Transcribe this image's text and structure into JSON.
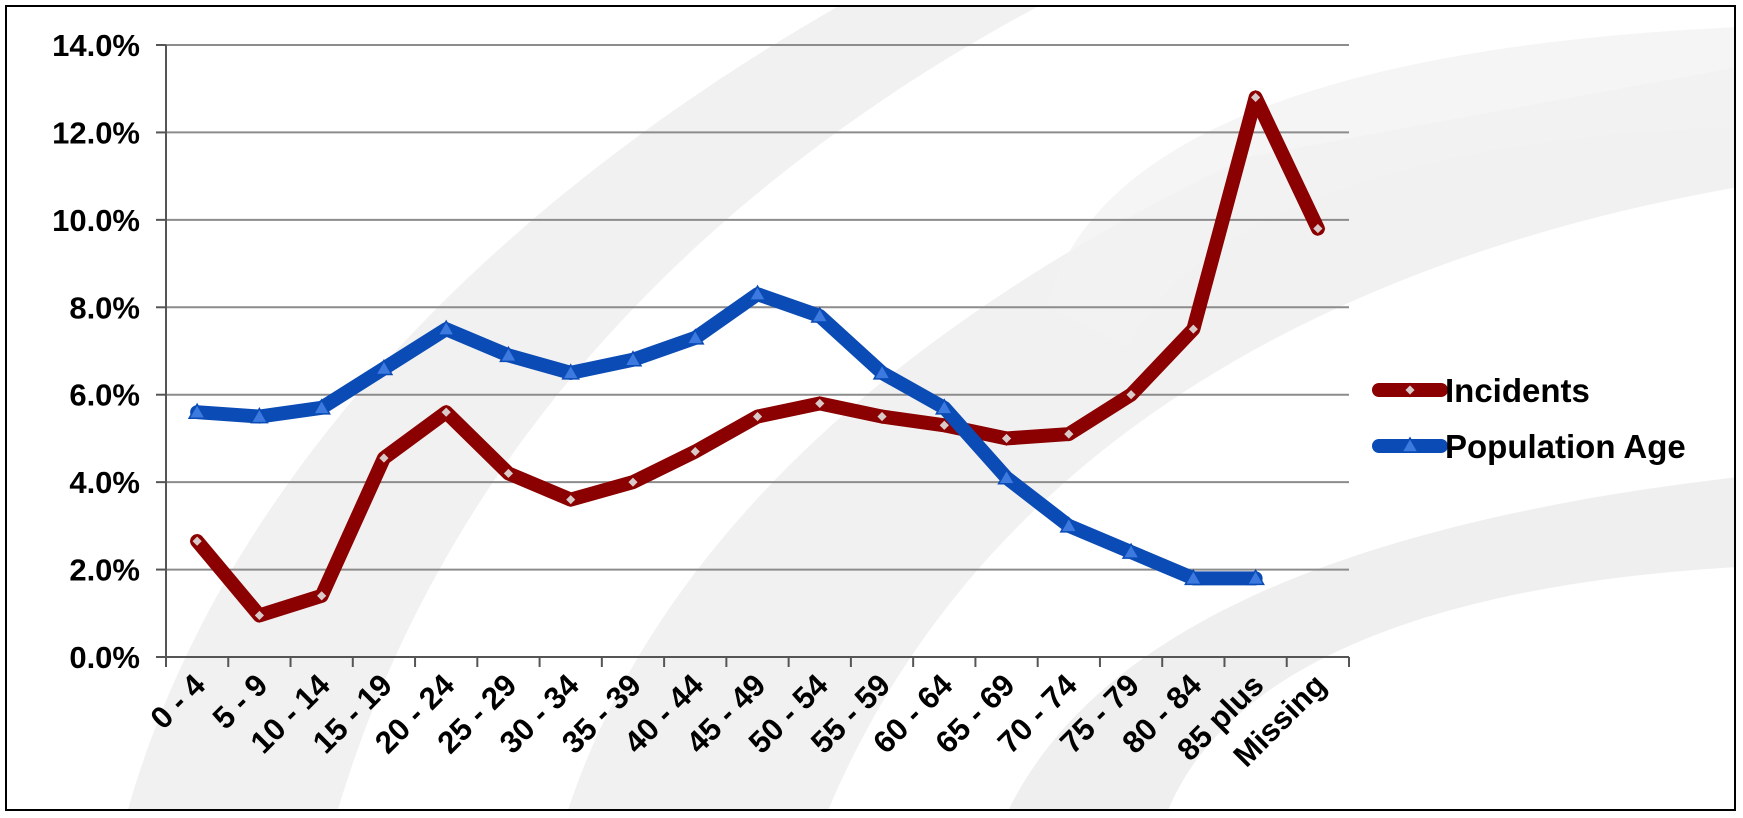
{
  "chart_data": {
    "type": "line",
    "categories": [
      "0 - 4",
      "5 - 9",
      "10 - 14",
      "15 - 19",
      "20 - 24",
      "25 - 29",
      "30 - 34",
      "35 - 39",
      "40 - 44",
      "45 - 49",
      "50 - 54",
      "55 - 59",
      "60 - 64",
      "65 - 69",
      "70 - 74",
      "75 - 79",
      "80 - 84",
      "85 plus",
      "Missing"
    ],
    "series": [
      {
        "name": "Incidents",
        "color": "#8B0000",
        "marker": "diamond",
        "values": [
          2.65,
          0.95,
          1.4,
          4.55,
          5.6,
          4.2,
          3.6,
          4.0,
          4.7,
          5.5,
          5.8,
          5.5,
          5.3,
          5.0,
          5.1,
          6.0,
          7.5,
          12.8,
          9.8
        ]
      },
      {
        "name": "Population Age",
        "color": "#0A4BB5",
        "marker": "triangle",
        "values": [
          5.6,
          5.5,
          5.7,
          6.6,
          7.5,
          6.9,
          6.5,
          6.8,
          7.3,
          8.3,
          7.8,
          6.5,
          5.7,
          4.1,
          3.0,
          2.4,
          1.8,
          1.8,
          null
        ]
      }
    ],
    "yticks": [
      "0.0%",
      "2.0%",
      "4.0%",
      "6.0%",
      "8.0%",
      "10.0%",
      "12.0%",
      "14.0%"
    ],
    "ylim": [
      0,
      14
    ],
    "grid": true,
    "legend": "right",
    "title": "",
    "xlabel": "",
    "ylabel": ""
  }
}
